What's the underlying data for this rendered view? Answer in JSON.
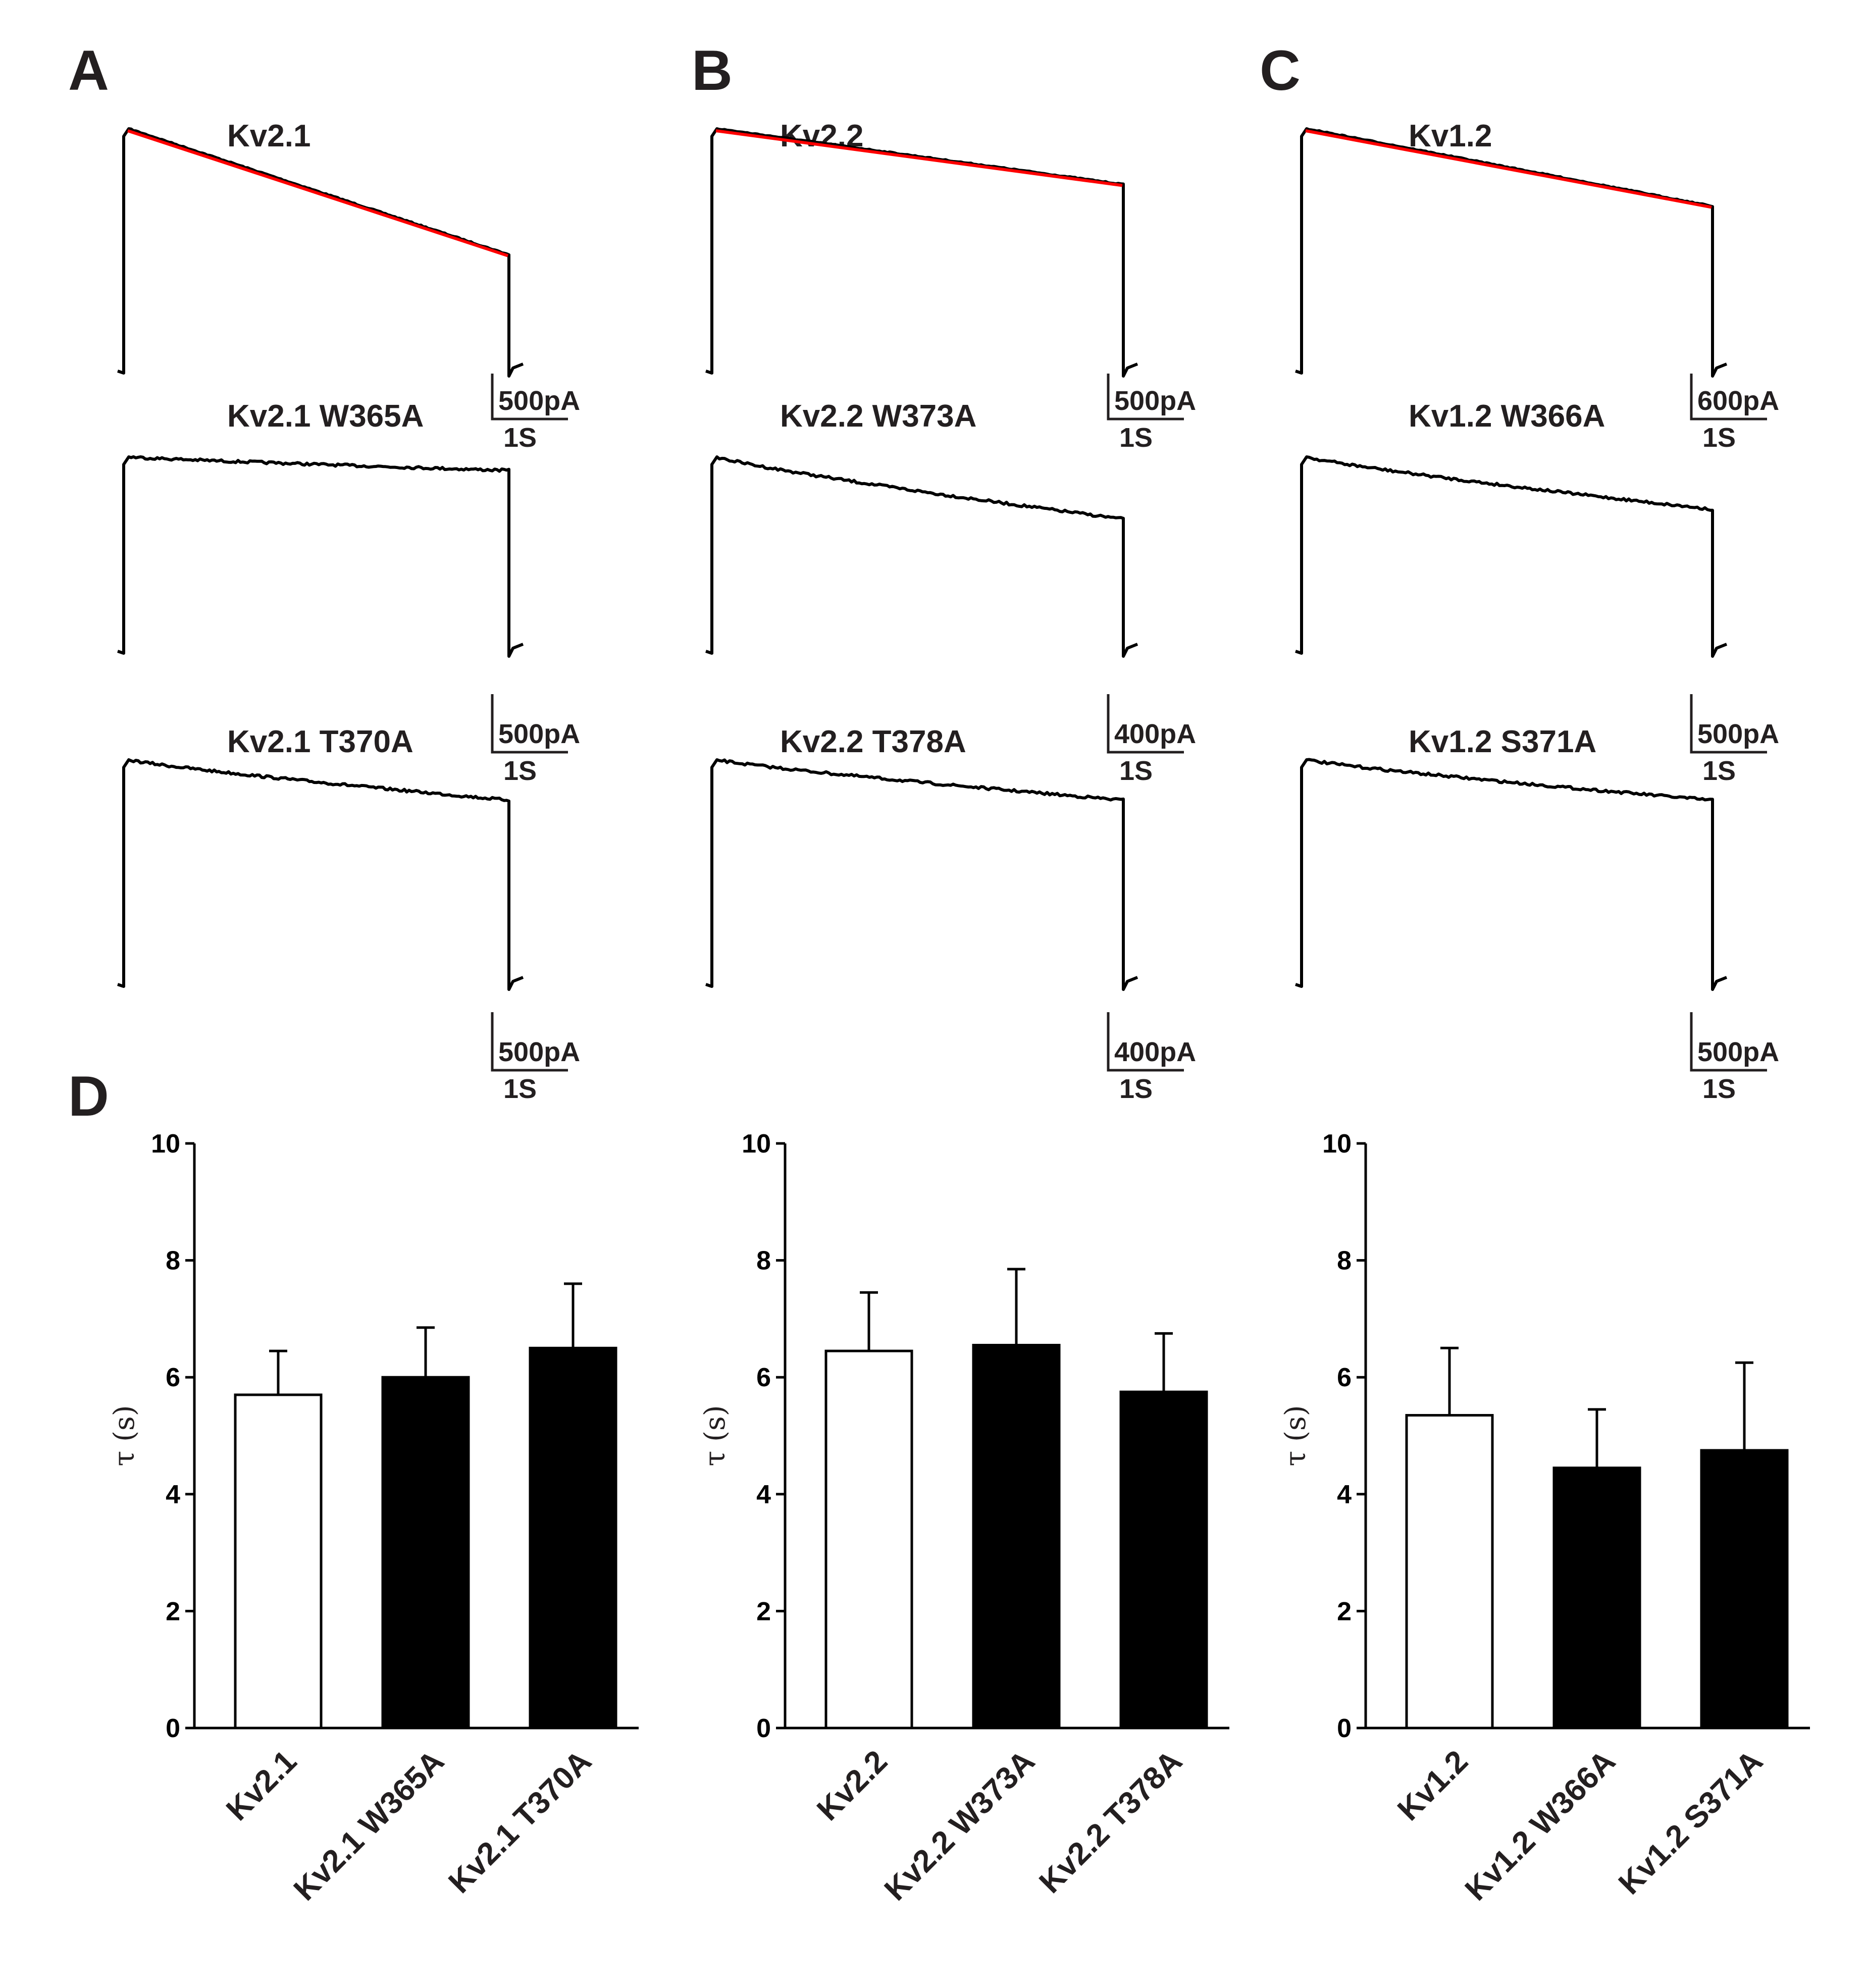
{
  "panel_letters": {
    "a": "A",
    "b": "B",
    "c": "C",
    "d": "D"
  },
  "colors": {
    "trace": "#000000",
    "fit": "#ff0000",
    "control_bar": "#ffffff",
    "mutant_bar": "#000000"
  },
  "traces": [
    {
      "id": "A1",
      "column": "A",
      "title": "Kv2.1",
      "has_fit": true,
      "decay_fraction": 0.52,
      "scale": {
        "current": "500pA",
        "time": "1S"
      }
    },
    {
      "id": "A2",
      "column": "A",
      "title": "Kv2.1 W365A",
      "has_fit": false,
      "decay_fraction": 0.07,
      "scale": {
        "current": "500pA",
        "time": "1S"
      }
    },
    {
      "id": "A3",
      "column": "A",
      "title": "Kv2.1 T370A",
      "has_fit": false,
      "decay_fraction": 0.18,
      "scale": {
        "current": "500pA",
        "time": "1S"
      }
    },
    {
      "id": "B1",
      "column": "B",
      "title": "Kv2.2",
      "has_fit": true,
      "decay_fraction": 0.23,
      "scale": {
        "current": "500pA",
        "time": "1S"
      }
    },
    {
      "id": "B2",
      "column": "B",
      "title": "Kv2.2 W373A",
      "has_fit": false,
      "decay_fraction": 0.32,
      "scale": {
        "current": "400pA",
        "time": "1S"
      }
    },
    {
      "id": "B3",
      "column": "B",
      "title": "Kv2.2 T378A",
      "has_fit": false,
      "decay_fraction": 0.18,
      "scale": {
        "current": "400pA",
        "time": "1S"
      }
    },
    {
      "id": "C1",
      "column": "C",
      "title": "Kv1.2",
      "has_fit": true,
      "decay_fraction": 0.32,
      "scale": {
        "current": "600pA",
        "time": "1S"
      }
    },
    {
      "id": "C2",
      "column": "C",
      "title": "Kv1.2 W366A",
      "has_fit": false,
      "decay_fraction": 0.27,
      "scale": {
        "current": "500pA",
        "time": "1S"
      }
    },
    {
      "id": "C3",
      "column": "C",
      "title": "Kv1.2 S371A",
      "has_fit": false,
      "decay_fraction": 0.18,
      "scale": {
        "current": "500pA",
        "time": "1S"
      }
    }
  ],
  "chart_data": [
    {
      "type": "bar",
      "ylabel": "τ (s)",
      "ylim": [
        0,
        10
      ],
      "yticks": [
        0,
        2,
        4,
        6,
        8,
        10
      ],
      "categories": [
        "Kv2.1",
        "Kv2.1 W365A",
        "Kv2.1 T370A"
      ],
      "values": [
        5.7,
        6.0,
        6.5
      ],
      "errors": [
        0.75,
        0.85,
        1.1
      ],
      "fills": [
        "white",
        "black",
        "black"
      ]
    },
    {
      "type": "bar",
      "ylabel": "τ (s)",
      "ylim": [
        0,
        10
      ],
      "yticks": [
        0,
        2,
        4,
        6,
        8,
        10
      ],
      "categories": [
        "Kv2.2",
        "Kv2.2 W373A",
        "Kv2.2 T378A"
      ],
      "values": [
        6.45,
        6.55,
        5.75
      ],
      "errors": [
        1.0,
        1.3,
        1.0
      ],
      "fills": [
        "white",
        "black",
        "black"
      ]
    },
    {
      "type": "bar",
      "ylabel": "τ (s)",
      "ylim": [
        0,
        10
      ],
      "yticks": [
        0,
        2,
        4,
        6,
        8,
        10
      ],
      "categories": [
        "Kv1.2",
        "Kv1.2 W366A",
        "Kv1.2 S371A"
      ],
      "values": [
        5.35,
        4.45,
        4.75
      ],
      "errors": [
        1.15,
        1.0,
        1.5
      ],
      "fills": [
        "white",
        "black",
        "black"
      ]
    }
  ]
}
